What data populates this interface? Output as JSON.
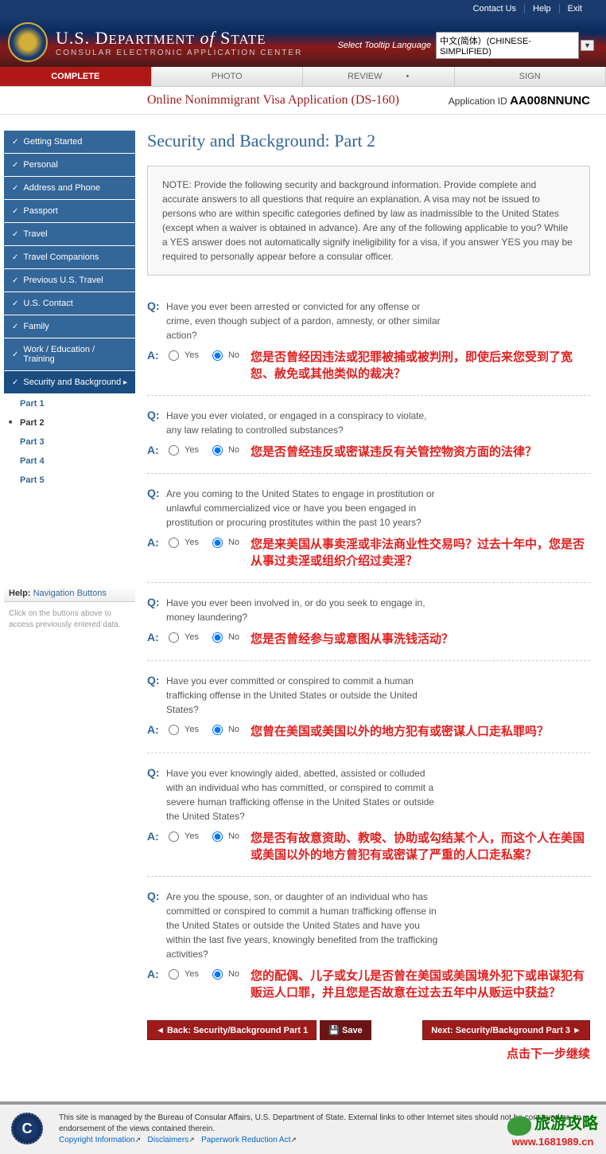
{
  "topbar": {
    "contact": "Contact Us",
    "help": "Help",
    "exit": "Exit"
  },
  "header": {
    "title_pre": "U.S. D",
    "title_mid1": "EPARTMENT",
    "title_of": " of ",
    "title_mid2": "S",
    "title_end": "TATE",
    "subtitle": "CONSULAR ELECTRONIC APPLICATION CENTER",
    "lang_label": "Select Tooltip Language",
    "lang_value": "中文(简体）(CHINESE-SIMPLIFIED)"
  },
  "tabs": {
    "complete": "COMPLETE",
    "photo": "PHOTO",
    "review": "REVIEW",
    "sign": "SIGN"
  },
  "titlebar": {
    "main": "Online Nonimmigrant Visa Application (DS-160)",
    "appid_label": "Application ID ",
    "appid": "AA008NNUNC"
  },
  "nav": [
    "Getting Started",
    "Personal",
    "Address and Phone",
    "Passport",
    "Travel",
    "Travel Companions",
    "Previous U.S. Travel",
    "U.S. Contact",
    "Family",
    "Work / Education / Training",
    "Security and Background"
  ],
  "nav_subs": [
    "Part 1",
    "Part 2",
    "Part 3",
    "Part 4",
    "Part 5"
  ],
  "helpbox": {
    "label": "Help:",
    "title": "Navigation Buttons",
    "text": "Click on the buttons above to access previously entered data."
  },
  "page_heading": "Security and Background: Part 2",
  "note": "NOTE: Provide the following security and background information. Provide complete and accurate answers to all questions that require an explanation. A visa may not be issued to persons who are within specific categories defined by law as inadmissible to the United States (except when a waiver is obtained in advance). Are any of the following applicable to you? While a YES answer does not automatically signify ineligibility for a visa, if you answer YES you may be required to personally appear before a consular officer.",
  "labels": {
    "q": "Q:",
    "a": "A:",
    "yes": "Yes",
    "no": "No"
  },
  "questions": [
    {
      "q": "Have you ever been arrested or convicted for any offense or crime, even though subject of a pardon, amnesty, or other similar action?",
      "t": "您是否曾经因违法或犯罪被捕或被判刑，即使后来您受到了宽恕、赦免或其他类似的裁决？"
    },
    {
      "q": "Have you ever violated, or engaged in a conspiracy to violate, any law relating to controlled substances?",
      "t": "您是否曾经违反或密谋违反有关管控物资方面的法律？"
    },
    {
      "q": "Are you coming to the United States to engage in prostitution or unlawful commercialized vice or have you been engaged in prostitution or procuring prostitutes within the past 10 years?",
      "t": "您是来美国从事卖淫或非法商业性交易吗？过去十年中，您是否从事过卖淫或组织介绍过卖淫？"
    },
    {
      "q": "Have you ever been involved in, or do you seek to engage in, money laundering?",
      "t": "您是否曾经参与或意图从事洗钱活动？"
    },
    {
      "q": "Have you ever committed or conspired to commit a human trafficking offense in the United States or outside the United States?",
      "t": "您曾在美国或美国以外的地方犯有或密谋人口走私罪吗？"
    },
    {
      "q": "Have you ever knowingly aided, abetted, assisted or colluded with an individual who has committed, or conspired to commit a severe human trafficking offense in the United States or outside the United States?",
      "t": "您是否有故意资助、教唆、协助或勾结某个人，而这个人在美国或美国以外的地方曾犯有或密谋了严重的人口走私案？"
    },
    {
      "q": "Are you the spouse, son, or daughter of an individual who has committed or conspired to commit a human trafficking offense in the United States or outside the United States and have you within the last five years, knowingly benefited from the trafficking activities?",
      "t": "您的配偶、儿子或女儿是否曾在美国或美国境外犯下或串谋犯有贩运人口罪，并且您是否故意在过去五年中从贩运中获益？"
    }
  ],
  "buttons": {
    "back": "◄ Back: Security/Background Part 1",
    "save": "💾 Save",
    "next": "Next: Security/Background Part 3 ►"
  },
  "continue_note": "点击下一步继续",
  "footer": {
    "text": "This site is managed by the Bureau of Consular Affairs, U.S. Department of State. External links to other Internet sites should not be construed as an endorsement of the views contained therein.",
    "link1": "Copyright Information",
    "link2": "Disclaimers",
    "link3": "Paperwork Reduction Act"
  },
  "watermark": {
    "cn": "旅游攻略",
    "url": "www.1681989.cn"
  }
}
